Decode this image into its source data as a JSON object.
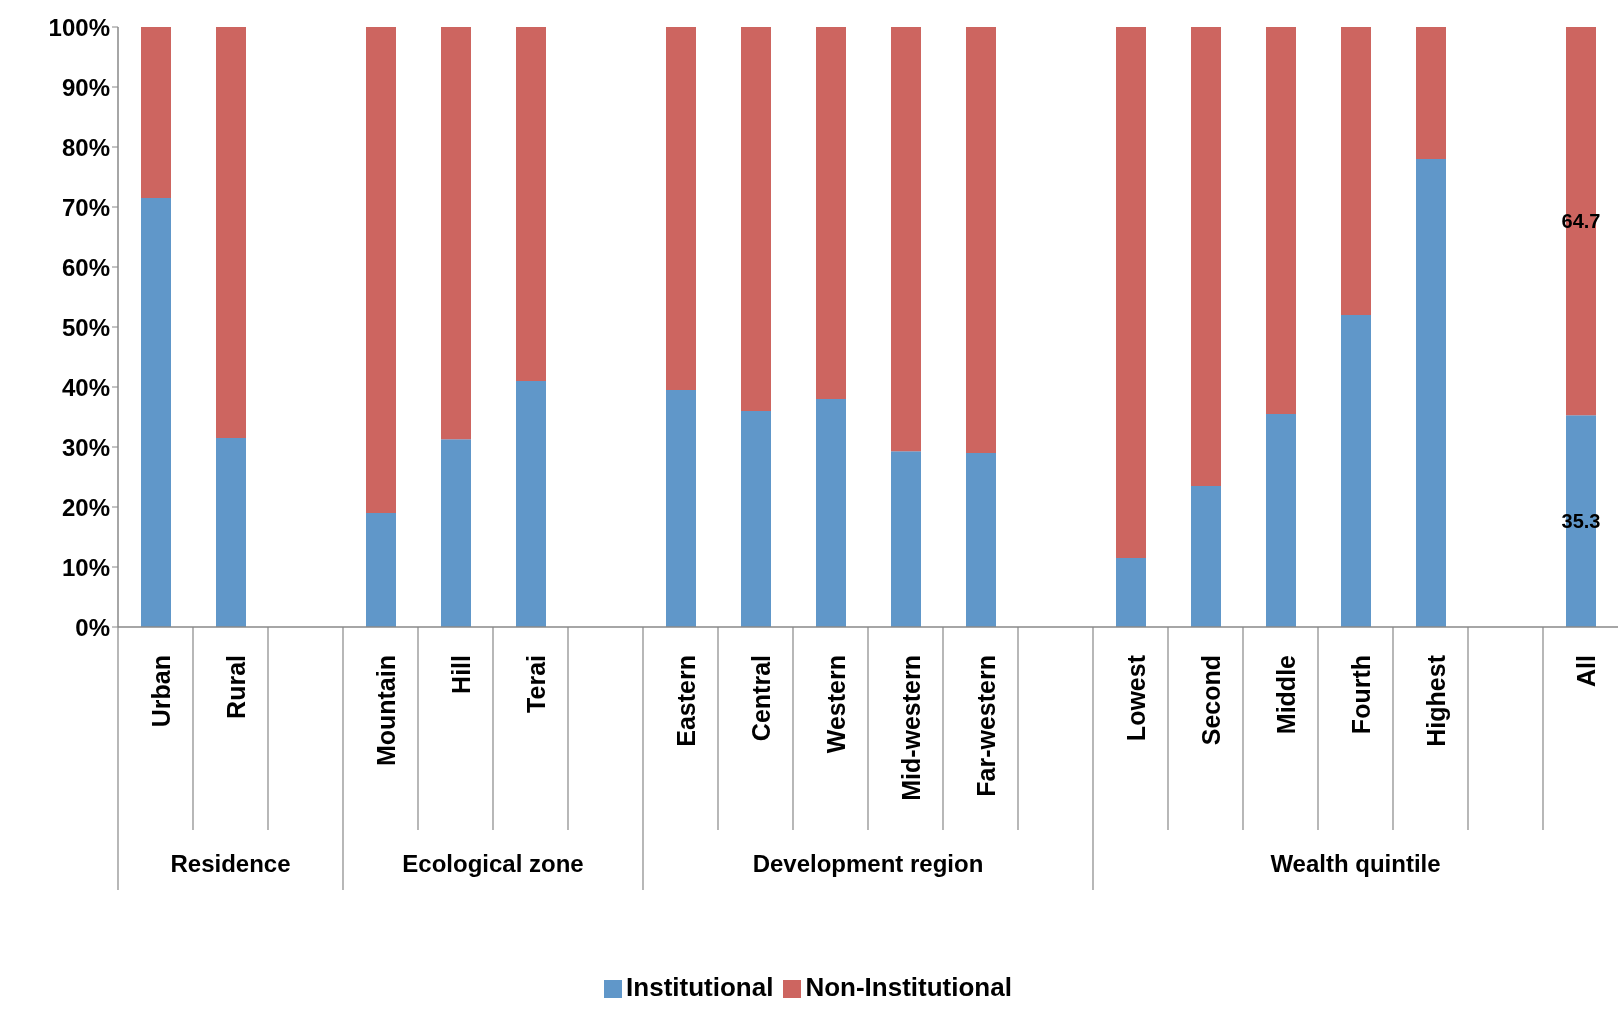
{
  "chart_data": {
    "type": "bar",
    "stacked": true,
    "categories": [
      "Urban",
      "Rural",
      null,
      "Mountain",
      "Hill",
      "Terai",
      null,
      "Eastern",
      "Central",
      "Western",
      "Mid-western",
      "Far-western",
      null,
      "Lowest",
      "Second",
      "Middle",
      "Fourth",
      "Highest",
      null,
      "All"
    ],
    "series": [
      {
        "name": "Institutional",
        "color": "#6097c9",
        "values": [
          71.5,
          31.5,
          null,
          19,
          31.3,
          41,
          null,
          39.5,
          36,
          38,
          29.3,
          29,
          null,
          11.5,
          23.5,
          35.5,
          52,
          78,
          null,
          35.3
        ],
        "value_labels": [
          null,
          null,
          null,
          null,
          null,
          null,
          null,
          null,
          null,
          null,
          null,
          null,
          null,
          null,
          null,
          null,
          null,
          null,
          null,
          "35.3"
        ]
      },
      {
        "name": "Non-Institutional",
        "color": "#cd6560",
        "values": [
          28.5,
          68.5,
          null,
          81,
          68.7,
          59,
          null,
          60.5,
          64,
          62,
          70.7,
          71,
          null,
          88.5,
          76.5,
          64.5,
          48,
          22,
          null,
          64.7
        ],
        "value_labels": [
          null,
          null,
          null,
          null,
          null,
          null,
          null,
          null,
          null,
          null,
          null,
          null,
          null,
          null,
          null,
          null,
          null,
          null,
          null,
          "64.7"
        ]
      }
    ],
    "annotations": [
      "Residence",
      "Ecological zone",
      "Development region",
      "Wealth quintile"
    ],
    "ylim": [
      0,
      100
    ],
    "yticks": [
      {
        "value": 0,
        "label": "0%"
      },
      {
        "value": 10,
        "label": "10%"
      },
      {
        "value": 20,
        "label": "20%"
      },
      {
        "value": 30,
        "label": "30%"
      },
      {
        "value": 40,
        "label": "40%"
      },
      {
        "value": 50,
        "label": "50%"
      },
      {
        "value": 60,
        "label": "60%"
      },
      {
        "value": 70,
        "label": "70%"
      },
      {
        "value": 80,
        "label": "80%"
      },
      {
        "value": 90,
        "label": "90%"
      },
      {
        "value": 100,
        "label": "100%"
      }
    ],
    "grid": false,
    "legend": "bottom"
  }
}
